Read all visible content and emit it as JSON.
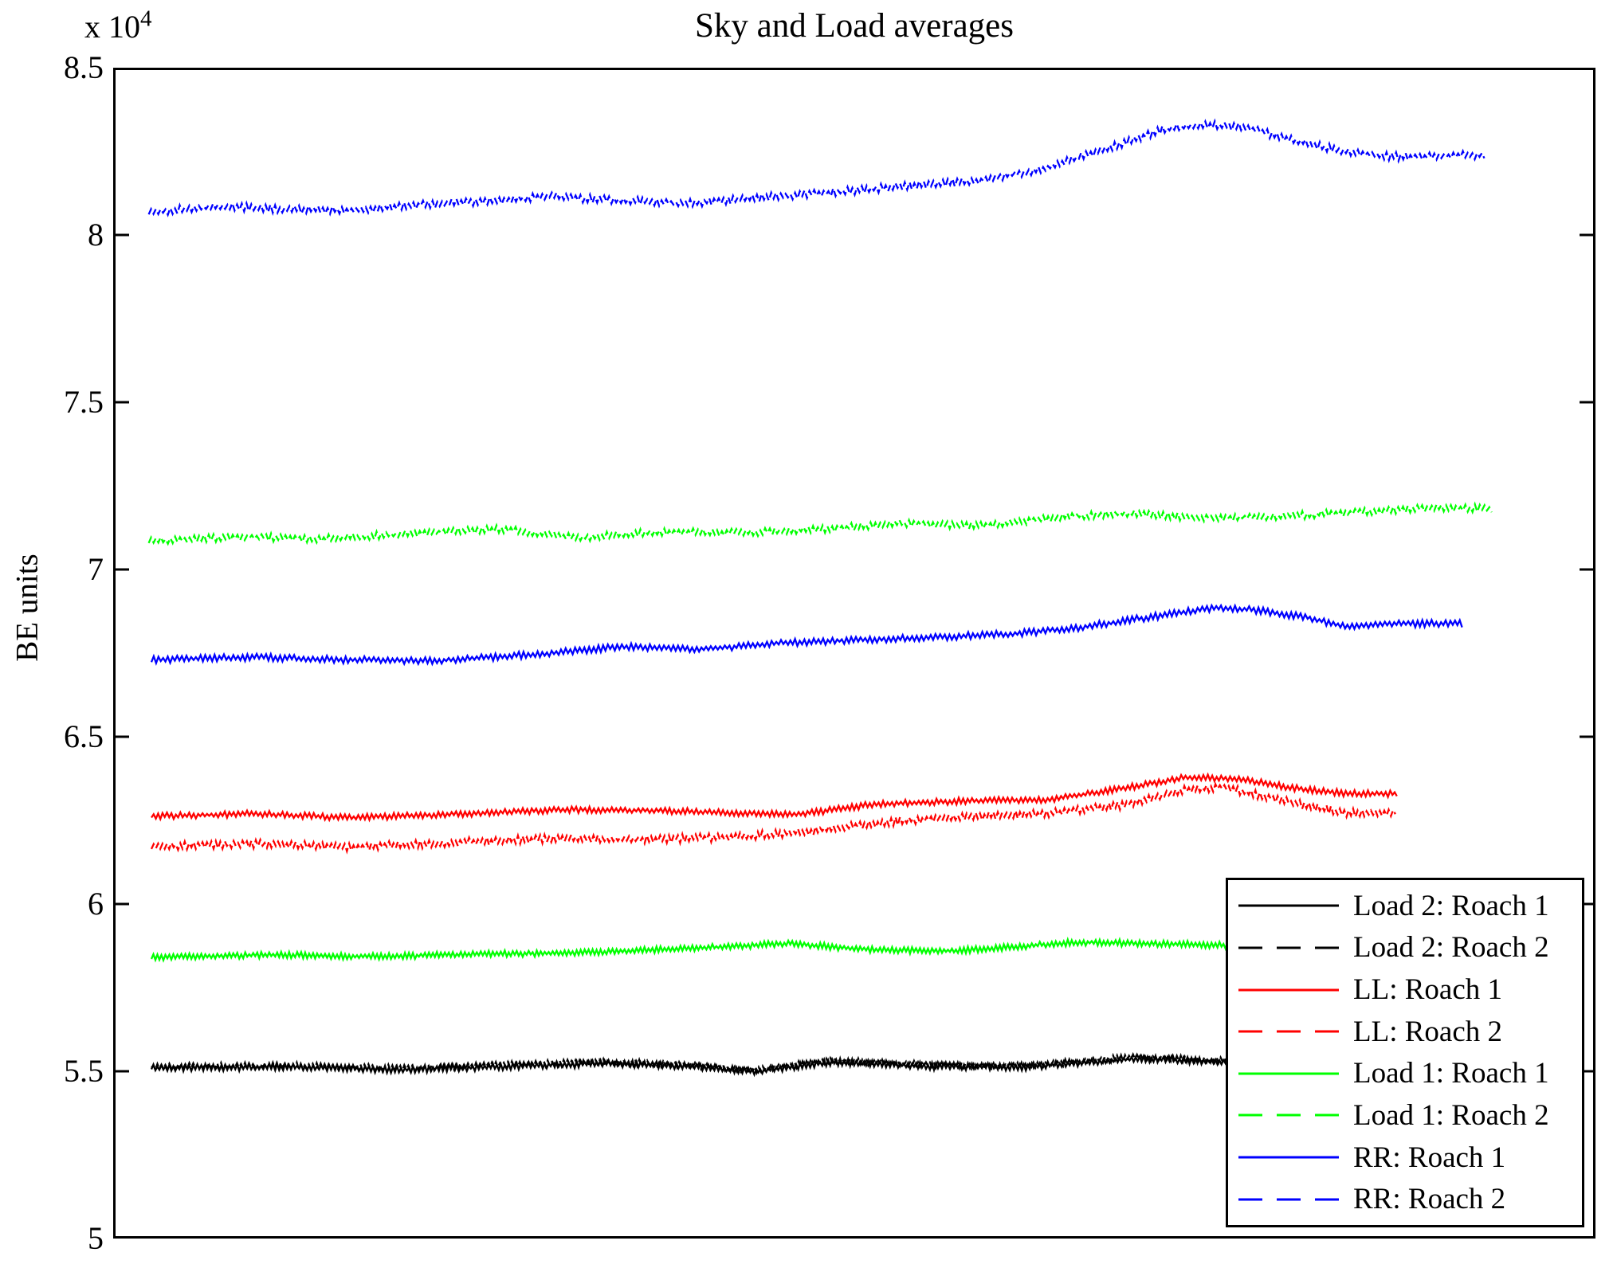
{
  "chart_data": {
    "type": "line",
    "title": "Sky and Load averages",
    "ylabel": "BE units",
    "y_scale_label": {
      "base": "x 10",
      "exp": "4"
    },
    "xlabel": "",
    "ylim_1e4": [
      5,
      8.5
    ],
    "grid": false,
    "x_ticks": [],
    "y_ticks": [
      {
        "value": 8.5,
        "label": "8.5"
      },
      {
        "value": 8.0,
        "label": "8"
      },
      {
        "value": 7.5,
        "label": "7.5"
      },
      {
        "value": 7.0,
        "label": "7"
      },
      {
        "value": 6.5,
        "label": "6.5"
      },
      {
        "value": 6.0,
        "label": "6"
      },
      {
        "value": 5.5,
        "label": "5.5"
      },
      {
        "value": 5.0,
        "label": "5"
      }
    ],
    "legend": {
      "position": "lower right",
      "entries": [
        {
          "label": "Load 2: Roach 1",
          "color": "#000000",
          "style": "solid"
        },
        {
          "label": "Load 2: Roach 2",
          "color": "#000000",
          "style": "dashed"
        },
        {
          "label": "LL: Roach 1",
          "color": "#ff0000",
          "style": "solid"
        },
        {
          "label": "LL: Roach 2",
          "color": "#ff0000",
          "style": "dashed"
        },
        {
          "label": "Load 1: Roach 1",
          "color": "#00ff00",
          "style": "solid"
        },
        {
          "label": "Load 1: Roach 2",
          "color": "#00ff00",
          "style": "dashed"
        },
        {
          "label": "RR: Roach 1",
          "color": "#0000ff",
          "style": "solid"
        },
        {
          "label": "RR: Roach 2",
          "color": "#0000ff",
          "style": "dashed"
        }
      ]
    },
    "series": [
      {
        "name": "Load 2: Roach 2",
        "color": "#000000",
        "style": "dashed",
        "draw_index": 1,
        "x_span": [
          0.0258,
          0.778
        ],
        "noise_amp_1e4": 0.01,
        "keypoints": [
          [
            0,
            5.514
          ],
          [
            0.12,
            5.517
          ],
          [
            0.22,
            5.509
          ],
          [
            0.32,
            5.519
          ],
          [
            0.41,
            5.528
          ],
          [
            0.48,
            5.519
          ],
          [
            0.54,
            5.504
          ],
          [
            0.61,
            5.532
          ],
          [
            0.7,
            5.519
          ],
          [
            0.78,
            5.516
          ],
          [
            0.88,
            5.542
          ],
          [
            0.95,
            5.534
          ],
          [
            1,
            5.526
          ]
        ]
      },
      {
        "name": "Load 2: Roach 1",
        "color": "#000000",
        "style": "solid",
        "draw_index": 2,
        "x_span": [
          0.0258,
          0.78
        ],
        "noise_amp_1e4": 0.011,
        "keypoints": [
          [
            0,
            5.51
          ],
          [
            0.12,
            5.513
          ],
          [
            0.22,
            5.505
          ],
          [
            0.32,
            5.515
          ],
          [
            0.41,
            5.524
          ],
          [
            0.48,
            5.515
          ],
          [
            0.54,
            5.5
          ],
          [
            0.61,
            5.528
          ],
          [
            0.7,
            5.515
          ],
          [
            0.78,
            5.512
          ],
          [
            0.88,
            5.538
          ],
          [
            0.95,
            5.53
          ],
          [
            1,
            5.522
          ]
        ]
      },
      {
        "name": "Load 1: Roach 1",
        "color": "#00ff00",
        "style": "solid",
        "draw_index": 3,
        "x_span": [
          0.0258,
          0.78
        ],
        "noise_amp_1e4": 0.01,
        "keypoints": [
          [
            0,
            5.84
          ],
          [
            0.1,
            5.848
          ],
          [
            0.2,
            5.843
          ],
          [
            0.3,
            5.85
          ],
          [
            0.4,
            5.856
          ],
          [
            0.5,
            5.87
          ],
          [
            0.57,
            5.882
          ],
          [
            0.65,
            5.862
          ],
          [
            0.72,
            5.86
          ],
          [
            0.83,
            5.886
          ],
          [
            0.92,
            5.88
          ],
          [
            1,
            5.874
          ]
        ]
      },
      {
        "name": "LL: Roach 2",
        "color": "#ff0000",
        "style": "dashed",
        "draw_index": 4,
        "x_span": [
          0.0258,
          0.865
        ],
        "noise_amp_1e4": 0.013,
        "keypoints": [
          [
            0,
            6.172
          ],
          [
            0.08,
            6.18
          ],
          [
            0.16,
            6.17
          ],
          [
            0.25,
            6.185
          ],
          [
            0.33,
            6.197
          ],
          [
            0.4,
            6.193
          ],
          [
            0.47,
            6.2
          ],
          [
            0.53,
            6.218
          ],
          [
            0.6,
            6.248
          ],
          [
            0.66,
            6.262
          ],
          [
            0.72,
            6.27
          ],
          [
            0.78,
            6.295
          ],
          [
            0.83,
            6.34
          ],
          [
            0.86,
            6.35
          ],
          [
            0.92,
            6.3
          ],
          [
            0.96,
            6.272
          ],
          [
            1,
            6.275
          ]
        ]
      },
      {
        "name": "LL: Roach 1",
        "color": "#ff0000",
        "style": "solid",
        "draw_index": 5,
        "x_span": [
          0.0258,
          0.866
        ],
        "noise_amp_1e4": 0.01,
        "keypoints": [
          [
            0,
            6.262
          ],
          [
            0.08,
            6.27
          ],
          [
            0.16,
            6.258
          ],
          [
            0.25,
            6.27
          ],
          [
            0.33,
            6.282
          ],
          [
            0.4,
            6.28
          ],
          [
            0.47,
            6.272
          ],
          [
            0.52,
            6.268
          ],
          [
            0.58,
            6.298
          ],
          [
            0.65,
            6.308
          ],
          [
            0.72,
            6.312
          ],
          [
            0.78,
            6.345
          ],
          [
            0.83,
            6.378
          ],
          [
            0.87,
            6.375
          ],
          [
            0.92,
            6.345
          ],
          [
            0.96,
            6.33
          ],
          [
            1,
            6.33
          ]
        ]
      },
      {
        "name": "RR: Roach 1",
        "color": "#0000ff",
        "style": "solid",
        "draw_index": 6,
        "x_span": [
          0.0258,
          0.91
        ],
        "noise_amp_1e4": 0.011,
        "keypoints": [
          [
            0,
            6.73
          ],
          [
            0.08,
            6.738
          ],
          [
            0.15,
            6.73
          ],
          [
            0.22,
            6.728
          ],
          [
            0.3,
            6.748
          ],
          [
            0.36,
            6.77
          ],
          [
            0.42,
            6.762
          ],
          [
            0.48,
            6.78
          ],
          [
            0.54,
            6.79
          ],
          [
            0.6,
            6.798
          ],
          [
            0.66,
            6.808
          ],
          [
            0.71,
            6.828
          ],
          [
            0.77,
            6.862
          ],
          [
            0.81,
            6.885
          ],
          [
            0.84,
            6.88
          ],
          [
            0.88,
            6.858
          ],
          [
            0.91,
            6.83
          ],
          [
            0.95,
            6.838
          ],
          [
            1,
            6.838
          ]
        ]
      },
      {
        "name": "Load 1: Roach 2",
        "color": "#00ff00",
        "style": "dashed",
        "draw_index": 7,
        "x_span": [
          0.024,
          0.93
        ],
        "noise_amp_1e4": 0.012,
        "keypoints": [
          [
            0,
            7.085
          ],
          [
            0.07,
            7.098
          ],
          [
            0.13,
            7.092
          ],
          [
            0.2,
            7.108
          ],
          [
            0.26,
            7.122
          ],
          [
            0.32,
            7.095
          ],
          [
            0.38,
            7.112
          ],
          [
            0.44,
            7.11
          ],
          [
            0.5,
            7.12
          ],
          [
            0.56,
            7.138
          ],
          [
            0.62,
            7.13
          ],
          [
            0.68,
            7.158
          ],
          [
            0.73,
            7.168
          ],
          [
            0.78,
            7.155
          ],
          [
            0.84,
            7.158
          ],
          [
            0.9,
            7.172
          ],
          [
            0.96,
            7.185
          ],
          [
            1,
            7.182
          ]
        ]
      },
      {
        "name": "RR: Roach 2",
        "color": "#0000ff",
        "style": "dashed",
        "draw_index": 8,
        "x_span": [
          0.024,
          0.925
        ],
        "noise_amp_1e4": 0.013,
        "keypoints": [
          [
            0,
            8.068
          ],
          [
            0.05,
            8.085
          ],
          [
            0.1,
            8.078
          ],
          [
            0.15,
            8.072
          ],
          [
            0.2,
            8.09
          ],
          [
            0.25,
            8.1
          ],
          [
            0.3,
            8.116
          ],
          [
            0.34,
            8.106
          ],
          [
            0.4,
            8.094
          ],
          [
            0.46,
            8.112
          ],
          [
            0.52,
            8.13
          ],
          [
            0.57,
            8.148
          ],
          [
            0.62,
            8.162
          ],
          [
            0.67,
            8.198
          ],
          [
            0.72,
            8.262
          ],
          [
            0.76,
            8.315
          ],
          [
            0.79,
            8.33
          ],
          [
            0.82,
            8.322
          ],
          [
            0.86,
            8.28
          ],
          [
            0.9,
            8.245
          ],
          [
            0.94,
            8.232
          ],
          [
            1,
            8.24
          ]
        ]
      }
    ],
    "axis_color": "#000000",
    "background_color": "#ffffff"
  }
}
